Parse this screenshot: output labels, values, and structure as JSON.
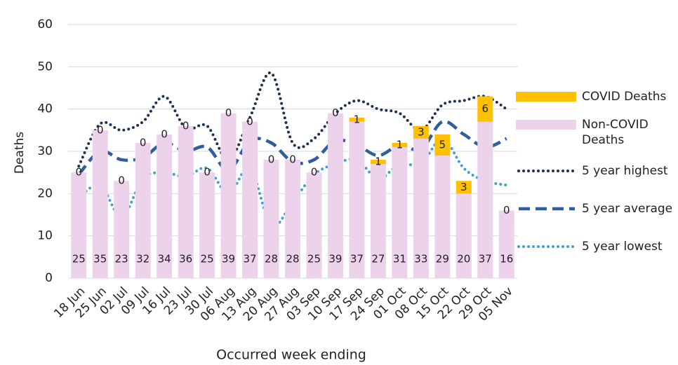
{
  "chart_data": {
    "type": "bar",
    "stacked": true,
    "y_label": "Deaths",
    "x_label": "Occurred week ending",
    "categories": [
      "18 Jun",
      "25 Jun",
      "02 Jul",
      "09 Jul",
      "16 Jul",
      "23 Jul",
      "30 Jul",
      "06 Aug",
      "13 Aug",
      "20 Aug",
      "27 Aug",
      "03 Sep",
      "10 Sep",
      "17 Sep",
      "24 Sep",
      "01 Oct",
      "08 Oct",
      "15 Oct",
      "22 Oct",
      "29 Oct",
      "05 Nov"
    ],
    "series": [
      {
        "name": "COVID Deaths",
        "type": "bar",
        "color": "#ffc000",
        "values": [
          0,
          0,
          0,
          0,
          0,
          0,
          0,
          0,
          0,
          0,
          0,
          0,
          0,
          1,
          1,
          1,
          3,
          5,
          3,
          6,
          0
        ]
      },
      {
        "name": "Non-COVID Deaths",
        "type": "bar",
        "color": "#ecd2ea",
        "values": [
          25,
          35,
          23,
          32,
          34,
          36,
          25,
          39,
          37,
          28,
          28,
          25,
          39,
          37,
          27,
          31,
          33,
          29,
          20,
          37,
          16
        ]
      },
      {
        "name": "5 year highest",
        "type": "line",
        "dash": "dotted",
        "color": "#1c2f55",
        "values": [
          26.5,
          36.5,
          35,
          37,
          43,
          35.5,
          36,
          28,
          38,
          48.5,
          32,
          33,
          39,
          42,
          40,
          39,
          35,
          41,
          42,
          43,
          40
        ]
      },
      {
        "name": "5 year average",
        "type": "line",
        "dash": "dashed",
        "color": "#2e5e9e",
        "values": [
          24.5,
          30,
          28,
          28.5,
          32,
          30,
          31,
          25.5,
          32.5,
          32,
          27.5,
          28,
          32.5,
          31.5,
          29,
          31.5,
          30.5,
          37,
          34,
          31,
          33
        ]
      },
      {
        "name": "5 year lowest",
        "type": "line",
        "dash": "dotted",
        "color": "#3fa0d8",
        "values": [
          19,
          22,
          14.5,
          23.5,
          25,
          24,
          26,
          20,
          26,
          12.5,
          18,
          24.5,
          27,
          28,
          23.5,
          27,
          27,
          33,
          26,
          23,
          22
        ]
      }
    ],
    "ylim": [
      0,
      60
    ],
    "yticks": [
      0,
      10,
      20,
      30,
      40,
      50,
      60
    ],
    "grid": true,
    "legend": "right"
  }
}
